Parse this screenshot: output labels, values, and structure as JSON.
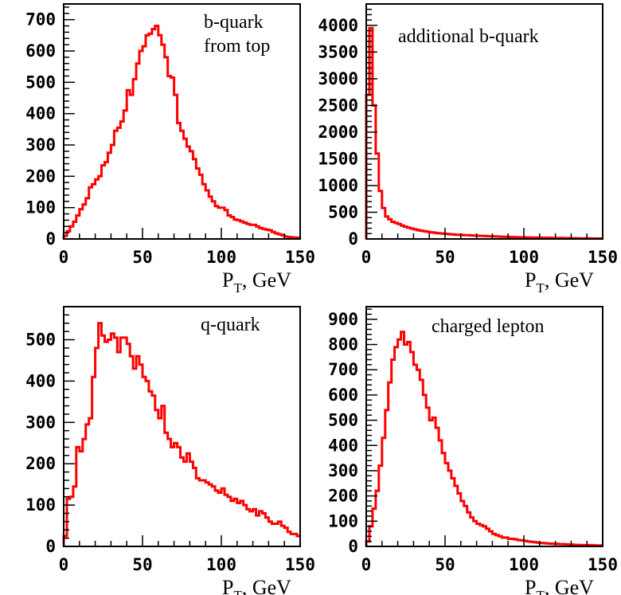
{
  "chart_data": [
    {
      "type": "step-histogram",
      "annotation": [
        "b-quark",
        "from top"
      ],
      "xlabel_main": "P",
      "xlabel_sub": "T",
      "xlabel_rest": ", GeV",
      "xlim": [
        0,
        150
      ],
      "ylim": [
        0,
        750
      ],
      "xticks": [
        0,
        50,
        100,
        150
      ],
      "yticks": [
        0,
        100,
        200,
        300,
        400,
        500,
        600,
        700
      ],
      "bin_width": 2,
      "color": "#ff0000",
      "values": [
        10,
        25,
        40,
        55,
        75,
        95,
        110,
        130,
        165,
        175,
        190,
        200,
        235,
        245,
        275,
        300,
        345,
        355,
        375,
        410,
        475,
        460,
        510,
        560,
        600,
        615,
        650,
        655,
        670,
        680,
        650,
        620,
        580,
        520,
        515,
        460,
        370,
        345,
        320,
        295,
        280,
        255,
        225,
        205,
        175,
        155,
        135,
        120,
        105,
        100,
        100,
        92,
        75,
        70,
        62,
        60,
        56,
        52,
        48,
        45,
        45,
        40,
        35,
        32,
        30,
        28,
        22,
        18,
        15,
        12,
        8,
        6,
        5,
        4,
        4
      ]
    },
    {
      "type": "step-histogram",
      "annotation": [
        "additional b-quark"
      ],
      "xlabel_main": "P",
      "xlabel_sub": "T",
      "xlabel_rest": ", GeV",
      "xlim": [
        0,
        150
      ],
      "ylim": [
        0,
        4400
      ],
      "xticks": [
        0,
        50,
        100,
        150
      ],
      "yticks": [
        0,
        500,
        1000,
        1500,
        2000,
        2500,
        3000,
        3500,
        4000
      ],
      "bin_width": 2,
      "color": "#ff0000",
      "values": [
        2700,
        3950,
        2500,
        1600,
        900,
        580,
        420,
        370,
        320,
        300,
        280,
        250,
        230,
        210,
        195,
        180,
        165,
        155,
        145,
        135,
        125,
        120,
        110,
        105,
        100,
        95,
        90,
        85,
        80,
        78,
        75,
        72,
        70,
        66,
        62,
        60,
        58,
        55,
        52,
        50,
        48,
        46,
        44,
        42,
        40,
        38,
        36,
        34,
        32,
        30,
        29,
        28,
        27,
        26,
        25,
        24,
        23,
        22,
        21,
        20,
        19,
        18,
        17,
        16,
        15,
        14,
        13,
        12,
        11,
        10,
        10,
        9,
        8,
        8,
        7
      ]
    },
    {
      "type": "step-histogram",
      "annotation": [
        "q-quark"
      ],
      "xlabel_main": "P",
      "xlabel_sub": "T",
      "xlabel_rest": ", GeV",
      "xlim": [
        0,
        150
      ],
      "ylim": [
        0,
        580
      ],
      "xticks": [
        0,
        50,
        100,
        150
      ],
      "yticks": [
        0,
        100,
        200,
        300,
        400,
        500
      ],
      "bin_width": 2,
      "color": "#ff0000",
      "values": [
        25,
        115,
        120,
        145,
        240,
        230,
        260,
        295,
        310,
        410,
        480,
        540,
        510,
        495,
        500,
        515,
        505,
        470,
        505,
        505,
        490,
        460,
        430,
        460,
        440,
        410,
        400,
        375,
        365,
        330,
        310,
        340,
        275,
        260,
        240,
        250,
        240,
        215,
        205,
        225,
        205,
        190,
        165,
        160,
        160,
        155,
        150,
        145,
        135,
        130,
        140,
        125,
        120,
        110,
        115,
        105,
        110,
        100,
        90,
        85,
        90,
        75,
        85,
        80,
        70,
        60,
        55,
        55,
        60,
        50,
        45,
        35,
        30,
        30,
        25
      ]
    },
    {
      "type": "step-histogram",
      "annotation": [
        "charged lepton"
      ],
      "xlabel_main": "P",
      "xlabel_sub": "T",
      "xlabel_rest": ", GeV",
      "xlim": [
        0,
        150
      ],
      "ylim": [
        0,
        950
      ],
      "xticks": [
        0,
        50,
        100,
        150
      ],
      "yticks": [
        0,
        100,
        200,
        300,
        400,
        500,
        600,
        700,
        800,
        900
      ],
      "bin_width": 2,
      "color": "#ff0000",
      "values": [
        20,
        80,
        150,
        220,
        320,
        430,
        540,
        650,
        740,
        790,
        820,
        850,
        800,
        810,
        770,
        720,
        700,
        660,
        600,
        550,
        500,
        510,
        470,
        420,
        370,
        330,
        300,
        270,
        240,
        210,
        180,
        160,
        135,
        115,
        100,
        90,
        85,
        80,
        70,
        60,
        50,
        45,
        40,
        35,
        35,
        30,
        30,
        28,
        25,
        24,
        22,
        20,
        18,
        17,
        15,
        14,
        13,
        12,
        11,
        10,
        10,
        9,
        9,
        8,
        7,
        7,
        6,
        6,
        5,
        5,
        5,
        5,
        4,
        4,
        4
      ]
    }
  ]
}
